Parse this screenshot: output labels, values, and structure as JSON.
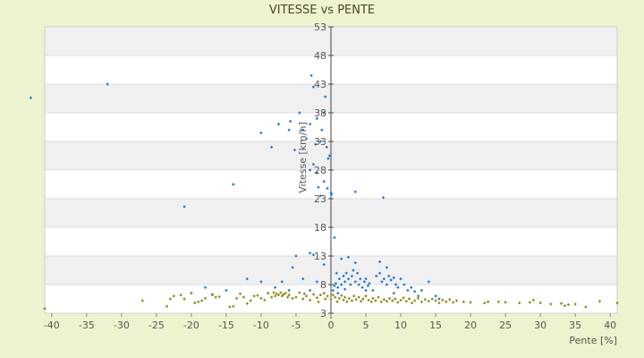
{
  "chart_data": {
    "type": "scatter",
    "title": "VITESSE vs PENTE",
    "xlabel": "Pente [%]",
    "ylabel": "Vitesse [km/h]",
    "xlim": [
      -41,
      41
    ],
    "ylim": [
      3,
      53
    ],
    "x_ticks": [
      -40,
      -35,
      -30,
      -25,
      -20,
      -15,
      -10,
      -5,
      0,
      5,
      10,
      15,
      20,
      25,
      30,
      35,
      40
    ],
    "y_ticks": [
      3,
      8,
      13,
      18,
      23,
      28,
      33,
      38,
      43,
      48,
      53
    ],
    "grid": true,
    "legend": "none",
    "colors": {
      "background": "#eef3cf",
      "band": "#f0f0f0",
      "plot": "#ffffff",
      "series_blue": "#1f77d4",
      "series_olive": "#8c8a1a",
      "axis": "#444444"
    },
    "series": [
      {
        "color": "#1f77d4",
        "points": [
          [
            -43,
            40.6
          ],
          [
            -32,
            43
          ],
          [
            -21,
            21.6
          ],
          [
            -14,
            25.5
          ],
          [
            -10,
            34.5
          ],
          [
            -8.5,
            32
          ],
          [
            -7.5,
            36
          ],
          [
            -6,
            35
          ],
          [
            -5.8,
            36.5
          ],
          [
            -5.2,
            31.5
          ],
          [
            -4.5,
            38
          ],
          [
            -4,
            35
          ],
          [
            -3.5,
            33.5
          ],
          [
            -3,
            36
          ],
          [
            -2.8,
            44.5
          ],
          [
            -2.5,
            42.5
          ],
          [
            -2.2,
            32.5
          ],
          [
            -2,
            37
          ],
          [
            -1.8,
            25
          ],
          [
            -1.5,
            33
          ],
          [
            -1.3,
            35
          ],
          [
            -1,
            38
          ],
          [
            -0.8,
            40.8
          ],
          [
            -0.6,
            32
          ],
          [
            -0.4,
            30
          ],
          [
            -0.2,
            30.5
          ],
          [
            0,
            24
          ],
          [
            -0.5,
            24.8
          ],
          [
            -1,
            26
          ],
          [
            -2,
            27.5
          ],
          [
            -2.5,
            29
          ],
          [
            -1.5,
            23.5
          ],
          [
            -3,
            28
          ],
          [
            0.1,
            23.8
          ],
          [
            3.5,
            24.2
          ],
          [
            7.5,
            23.2
          ],
          [
            0.5,
            16.2
          ],
          [
            -3,
            13.5
          ],
          [
            -5,
            13
          ],
          [
            -2.5,
            13.2
          ],
          [
            -5.5,
            11
          ],
          [
            -1,
            11.5
          ],
          [
            0.8,
            10
          ],
          [
            1.5,
            12.5
          ],
          [
            2.5,
            12.8
          ],
          [
            3.5,
            11.8
          ],
          [
            7,
            12
          ],
          [
            8,
            11
          ],
          [
            -12,
            9
          ],
          [
            -10,
            8.5
          ],
          [
            -8,
            7.5
          ],
          [
            -7,
            8.5
          ],
          [
            -6,
            7
          ],
          [
            -4,
            9
          ],
          [
            -3,
            7
          ],
          [
            -2,
            8.5
          ],
          [
            0.3,
            7
          ],
          [
            0.5,
            7.8
          ],
          [
            0.7,
            8.2
          ],
          [
            1,
            7.5
          ],
          [
            1.2,
            9
          ],
          [
            1.5,
            8
          ],
          [
            1.8,
            9.5
          ],
          [
            2,
            8.5
          ],
          [
            2.2,
            10
          ],
          [
            2.5,
            9
          ],
          [
            2.8,
            8
          ],
          [
            3,
            9.5
          ],
          [
            3.2,
            10.5
          ],
          [
            3.5,
            8.5
          ],
          [
            3.8,
            10
          ],
          [
            4,
            8
          ],
          [
            4.2,
            9
          ],
          [
            4.5,
            7.5
          ],
          [
            4.8,
            8.5
          ],
          [
            5,
            9
          ],
          [
            5.3,
            7.8
          ],
          [
            5.5,
            8.2
          ],
          [
            6,
            7
          ],
          [
            6.5,
            9.5
          ],
          [
            7,
            10
          ],
          [
            7.3,
            8.5
          ],
          [
            7.6,
            9
          ],
          [
            8,
            8
          ],
          [
            8.3,
            9.5
          ],
          [
            8.6,
            8.8
          ],
          [
            9,
            9.2
          ],
          [
            9.3,
            8
          ],
          [
            9.6,
            7.5
          ],
          [
            10,
            9
          ],
          [
            10.5,
            8
          ],
          [
            11,
            7
          ],
          [
            11.5,
            7.5
          ],
          [
            12,
            6.8
          ],
          [
            12.5,
            6
          ],
          [
            13,
            7
          ],
          [
            14,
            8.5
          ],
          [
            15,
            6
          ],
          [
            15.5,
            5.5
          ],
          [
            -20,
            6.5
          ],
          [
            -18,
            7.5
          ],
          [
            -17,
            6.2
          ],
          [
            -15,
            7
          ],
          [
            -9,
            6.5
          ],
          [
            -1,
            6.5
          ],
          [
            1,
            6.5
          ],
          [
            5,
            7
          ],
          [
            9,
            6.5
          ],
          [
            2,
            7.2
          ]
        ]
      },
      {
        "color": "#8c8a1a",
        "points": [
          [
            -41,
            3.8
          ],
          [
            -27,
            5.2
          ],
          [
            -23.5,
            4.2
          ],
          [
            -23,
            5.5
          ],
          [
            -22.5,
            6
          ],
          [
            -21.5,
            6.2
          ],
          [
            -21,
            5.5
          ],
          [
            -20,
            6.5
          ],
          [
            -19.5,
            4.8
          ],
          [
            -19,
            5
          ],
          [
            -18.5,
            5.2
          ],
          [
            -18,
            5.6
          ],
          [
            -17,
            6.3
          ],
          [
            -16.5,
            5.8
          ],
          [
            -16,
            5.9
          ],
          [
            -14.5,
            4.1
          ],
          [
            -14,
            4.2
          ],
          [
            -13.5,
            5.6
          ],
          [
            -13,
            6.4
          ],
          [
            -12.5,
            5.8
          ],
          [
            -12,
            4.7
          ],
          [
            -11.5,
            5.2
          ],
          [
            -11,
            6
          ],
          [
            -10.5,
            6.1
          ],
          [
            -10,
            5.6
          ],
          [
            -9.5,
            5.3
          ],
          [
            -9,
            6.5
          ],
          [
            -8.5,
            5.8
          ],
          [
            -8.2,
            6.6
          ],
          [
            -8,
            6
          ],
          [
            -7.8,
            6.4
          ],
          [
            -7.5,
            6.2
          ],
          [
            -7.2,
            6.6
          ],
          [
            -7,
            6
          ],
          [
            -6.8,
            6.3
          ],
          [
            -6.5,
            6.5
          ],
          [
            -6.2,
            5.8
          ],
          [
            -6,
            6.2
          ],
          [
            -5.5,
            5.6
          ],
          [
            -5,
            5.8
          ],
          [
            -4.5,
            6.6
          ],
          [
            -4,
            5.5
          ],
          [
            -3.8,
            6.4
          ],
          [
            -3.5,
            6
          ],
          [
            -3,
            5.3
          ],
          [
            -2.5,
            6.3
          ],
          [
            -2,
            5.7
          ],
          [
            -1.8,
            5
          ],
          [
            -1.5,
            6.2
          ],
          [
            -1,
            6.5
          ],
          [
            -0.8,
            5.5
          ],
          [
            -0.5,
            6
          ],
          [
            0,
            5.4
          ],
          [
            0.3,
            6.2
          ],
          [
            0.6,
            5.8
          ],
          [
            0.9,
            5
          ],
          [
            1.2,
            5.6
          ],
          [
            1.5,
            6.1
          ],
          [
            1.8,
            5.3
          ],
          [
            2,
            5.8
          ],
          [
            2.3,
            5
          ],
          [
            2.6,
            5.6
          ],
          [
            3,
            5.2
          ],
          [
            3.3,
            6
          ],
          [
            3.6,
            5.4
          ],
          [
            4,
            5.8
          ],
          [
            4.3,
            5.1
          ],
          [
            4.6,
            5.5
          ],
          [
            5,
            6
          ],
          [
            5.4,
            5.3
          ],
          [
            5.8,
            5
          ],
          [
            6,
            5.6
          ],
          [
            6.4,
            5.2
          ],
          [
            6.8,
            5.8
          ],
          [
            7.2,
            5
          ],
          [
            7.6,
            5.4
          ],
          [
            8,
            5.1
          ],
          [
            8.4,
            5.6
          ],
          [
            8.8,
            5.2
          ],
          [
            9.2,
            5.5
          ],
          [
            9.6,
            4.9
          ],
          [
            10,
            5.3
          ],
          [
            10.4,
            5.7
          ],
          [
            10.8,
            5.1
          ],
          [
            11.2,
            5.5
          ],
          [
            11.6,
            4.8
          ],
          [
            12,
            5.2
          ],
          [
            12.5,
            5.6
          ],
          [
            13,
            5
          ],
          [
            13.5,
            5.4
          ],
          [
            14,
            5.1
          ],
          [
            14.5,
            5.5
          ],
          [
            15,
            5.2
          ],
          [
            15.5,
            4.8
          ],
          [
            16,
            5.3
          ],
          [
            16.5,
            5
          ],
          [
            17,
            5.4
          ],
          [
            17.5,
            4.9
          ],
          [
            18,
            5.2
          ],
          [
            19,
            5
          ],
          [
            20,
            4.9
          ],
          [
            22,
            4.8
          ],
          [
            22.5,
            5
          ],
          [
            24,
            5
          ],
          [
            25,
            4.9
          ],
          [
            27,
            4.8
          ],
          [
            28.5,
            4.9
          ],
          [
            29,
            5.3
          ],
          [
            30,
            4.8
          ],
          [
            31.5,
            4.6
          ],
          [
            33,
            4.7
          ],
          [
            33.5,
            4.3
          ],
          [
            34,
            4.5
          ],
          [
            35,
            4.6
          ],
          [
            36.5,
            4.1
          ],
          [
            38.5,
            5.1
          ],
          [
            41,
            4.8
          ]
        ]
      }
    ]
  }
}
